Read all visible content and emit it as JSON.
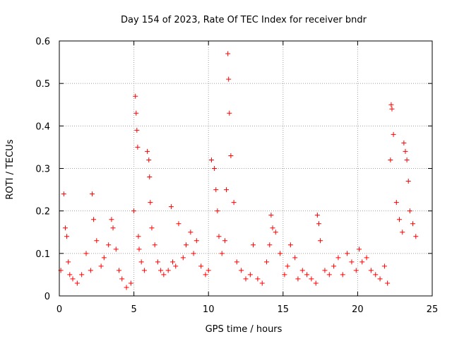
{
  "chart_data": {
    "type": "scatter",
    "title": "Day 154 of 2023, Rate Of TEC Index for receiver bndr",
    "xlabel": "GPS time / hours",
    "ylabel": "ROTI / TECUs",
    "xlim": [
      0,
      25
    ],
    "ylim": [
      0,
      0.6
    ],
    "x_ticks": [
      "0",
      "5",
      "10",
      "15",
      "20",
      "25"
    ],
    "y_ticks": [
      "0",
      "0.1",
      "0.2",
      "0.3",
      "0.4",
      "0.5",
      "0.6"
    ],
    "grid": true,
    "marker": "+",
    "marker_color": "#ff0000",
    "series": [
      {
        "x": [
          0.1,
          0.3,
          0.4,
          0.5,
          0.6,
          0.7,
          0.9,
          1.2,
          1.5,
          1.8,
          2.1,
          2.2,
          2.3,
          2.5,
          2.8,
          3.0,
          3.3,
          3.5,
          3.6,
          3.8,
          4.0,
          4.2,
          4.5,
          4.8,
          5.0,
          5.1,
          5.15,
          5.2,
          5.25,
          5.3,
          5.35,
          5.5,
          5.7,
          5.9,
          6.0,
          6.05,
          6.1,
          6.2,
          6.4,
          6.6,
          6.8,
          7.0,
          7.3,
          7.5,
          7.6,
          7.8,
          8.0,
          8.3,
          8.5,
          8.8,
          9.0,
          9.2,
          9.5,
          9.8,
          10.0,
          10.2,
          10.4,
          10.5,
          10.6,
          10.7,
          10.9,
          11.1,
          11.2,
          11.3,
          11.35,
          11.4,
          11.5,
          11.7,
          11.9,
          12.2,
          12.5,
          12.8,
          13.0,
          13.3,
          13.6,
          13.9,
          14.1,
          14.2,
          14.3,
          14.5,
          14.8,
          15.1,
          15.3,
          15.5,
          15.8,
          16.0,
          16.3,
          16.6,
          16.9,
          17.2,
          17.3,
          17.4,
          17.5,
          17.8,
          18.1,
          18.4,
          18.7,
          19.0,
          19.3,
          19.6,
          19.9,
          20.1,
          20.3,
          20.6,
          20.9,
          21.2,
          21.5,
          21.8,
          22.0,
          22.2,
          22.25,
          22.3,
          22.4,
          22.6,
          22.8,
          23.0,
          23.1,
          23.2,
          23.3,
          23.4,
          23.5,
          23.7,
          23.9
        ],
        "y": [
          0.06,
          0.24,
          0.16,
          0.14,
          0.08,
          0.05,
          0.04,
          0.03,
          0.05,
          0.1,
          0.06,
          0.24,
          0.18,
          0.13,
          0.07,
          0.09,
          0.12,
          0.18,
          0.16,
          0.11,
          0.06,
          0.04,
          0.02,
          0.03,
          0.2,
          0.47,
          0.43,
          0.39,
          0.35,
          0.14,
          0.11,
          0.08,
          0.06,
          0.34,
          0.32,
          0.28,
          0.22,
          0.16,
          0.12,
          0.08,
          0.06,
          0.05,
          0.06,
          0.21,
          0.08,
          0.07,
          0.17,
          0.09,
          0.12,
          0.15,
          0.1,
          0.13,
          0.07,
          0.05,
          0.06,
          0.32,
          0.3,
          0.25,
          0.2,
          0.14,
          0.1,
          0.13,
          0.25,
          0.57,
          0.51,
          0.43,
          0.33,
          0.22,
          0.08,
          0.06,
          0.04,
          0.05,
          0.12,
          0.04,
          0.03,
          0.08,
          0.12,
          0.19,
          0.16,
          0.15,
          0.1,
          0.05,
          0.07,
          0.12,
          0.09,
          0.04,
          0.06,
          0.05,
          0.04,
          0.03,
          0.19,
          0.17,
          0.13,
          0.06,
          0.05,
          0.07,
          0.09,
          0.05,
          0.1,
          0.08,
          0.06,
          0.11,
          0.08,
          0.09,
          0.06,
          0.05,
          0.04,
          0.07,
          0.03,
          0.32,
          0.45,
          0.44,
          0.38,
          0.22,
          0.18,
          0.15,
          0.36,
          0.34,
          0.32,
          0.27,
          0.2,
          0.17,
          0.14
        ]
      }
    ]
  }
}
